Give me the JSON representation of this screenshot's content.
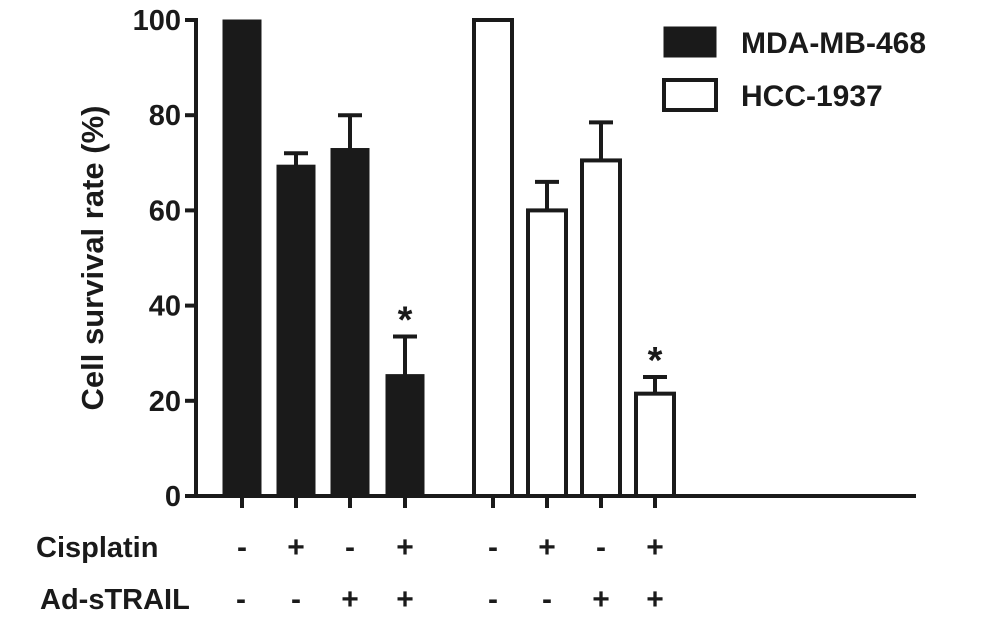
{
  "chart_data": {
    "type": "bar",
    "ylabel": "Cell survival rate (%)",
    "xlabel": "",
    "ylim": [
      0,
      100
    ],
    "yticks": [
      0,
      20,
      40,
      60,
      80,
      100
    ],
    "grid": false,
    "legend_position": "top-right",
    "series": [
      {
        "name": "MDA-MB-468",
        "fill": "#1a1a1a",
        "values": [
          100,
          69.5,
          73,
          25.5
        ],
        "errors": [
          0,
          2.5,
          7,
          8
        ],
        "significance": [
          "",
          "",
          "",
          "*"
        ]
      },
      {
        "name": "HCC-1937",
        "fill": "#ffffff",
        "values": [
          100,
          60,
          70.5,
          21.5
        ],
        "errors": [
          0,
          6,
          8,
          3.5
        ],
        "significance": [
          "",
          "",
          "",
          "*"
        ]
      }
    ],
    "treatments": [
      {
        "label": "Cisplatin",
        "signs": [
          "-",
          "+",
          "-",
          "+",
          "-",
          "+",
          "-",
          "+"
        ]
      },
      {
        "label": "Ad-sTRAIL",
        "signs": [
          "-",
          "-",
          "+",
          "+",
          "-",
          "-",
          "+",
          "+"
        ]
      }
    ]
  }
}
